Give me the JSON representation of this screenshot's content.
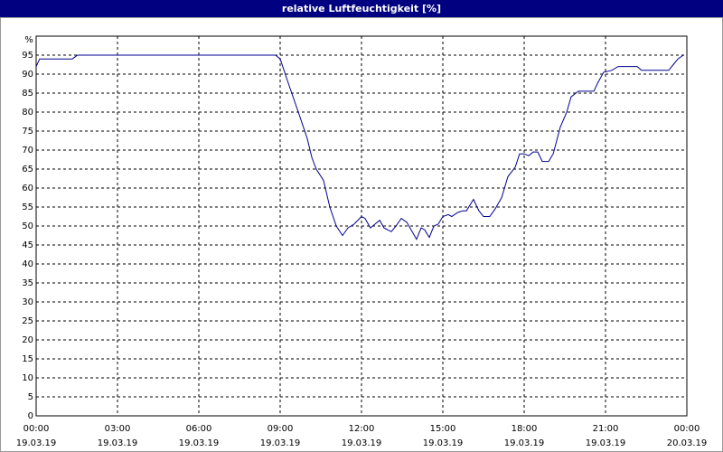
{
  "chart_data": {
    "type": "line",
    "title": "relative Luftfeuchtigkeit [%]",
    "y_unit": "%",
    "xlim": [
      0,
      24
    ],
    "xticks": [
      {
        "value": 0,
        "label": "00:00",
        "date": "19.03.19"
      },
      {
        "value": 3,
        "label": "03:00",
        "date": "19.03.19"
      },
      {
        "value": 6,
        "label": "06:00",
        "date": "19.03.19"
      },
      {
        "value": 9,
        "label": "09:00",
        "date": "19.03.19"
      },
      {
        "value": 12,
        "label": "12:00",
        "date": "19.03.19"
      },
      {
        "value": 15,
        "label": "15:00",
        "date": "19.03.19"
      },
      {
        "value": 18,
        "label": "18:00",
        "date": "19.03.19"
      },
      {
        "value": 21,
        "label": "21:00",
        "date": "19.03.19"
      },
      {
        "value": 24,
        "label": "00:00",
        "date": "20.03.19"
      }
    ],
    "ylim": [
      0,
      100
    ],
    "yticks": [
      0,
      5,
      10,
      15,
      20,
      25,
      30,
      35,
      40,
      45,
      50,
      55,
      60,
      65,
      70,
      75,
      80,
      85,
      90,
      95
    ],
    "grid": true,
    "series": [
      {
        "name": "relative Luftfeuchtigkeit",
        "color": "#000090",
        "x": [
          0,
          0.13,
          1.33,
          1.53,
          8.83,
          9,
          9.33,
          9.67,
          10,
          10.17,
          10.33,
          10.6,
          10.83,
          11.07,
          11.3,
          11.5,
          11.73,
          12,
          12.13,
          12.33,
          12.5,
          12.67,
          12.83,
          13.1,
          13.27,
          13.47,
          13.67,
          13.83,
          14.03,
          14.2,
          14.33,
          14.5,
          14.67,
          14.83,
          15,
          15.2,
          15.33,
          15.53,
          15.73,
          15.87,
          16,
          16.13,
          16.33,
          16.5,
          16.73,
          16.93,
          17.17,
          17.4,
          17.67,
          17.83,
          18,
          18.17,
          18.33,
          18.5,
          18.67,
          18.9,
          19.07,
          19.33,
          19.57,
          19.73,
          20,
          20.27,
          20.57,
          20.7,
          20.93,
          21.23,
          21.47,
          22,
          22.17,
          22.33,
          23.33,
          23.5,
          23.67,
          23.87
        ],
        "values": [
          92,
          94,
          94,
          95,
          95,
          94,
          87,
          80,
          73,
          68,
          65,
          62,
          55,
          50,
          47.5,
          49.5,
          50.5,
          52.5,
          52,
          49.5,
          50.5,
          51.5,
          49.5,
          48.5,
          50,
          52,
          51,
          49,
          46.5,
          49.5,
          49,
          47,
          50,
          50.5,
          52.5,
          53,
          52.5,
          53.5,
          54,
          54,
          55.5,
          57,
          54,
          52.5,
          52.5,
          54.5,
          57.5,
          63,
          65.5,
          69,
          69,
          68.5,
          69.5,
          69.5,
          67,
          67,
          69,
          76,
          80,
          84,
          85.5,
          85.5,
          85.5,
          87.5,
          90.5,
          91,
          92,
          92,
          92,
          91,
          91,
          92.5,
          94,
          95
        ]
      }
    ]
  }
}
